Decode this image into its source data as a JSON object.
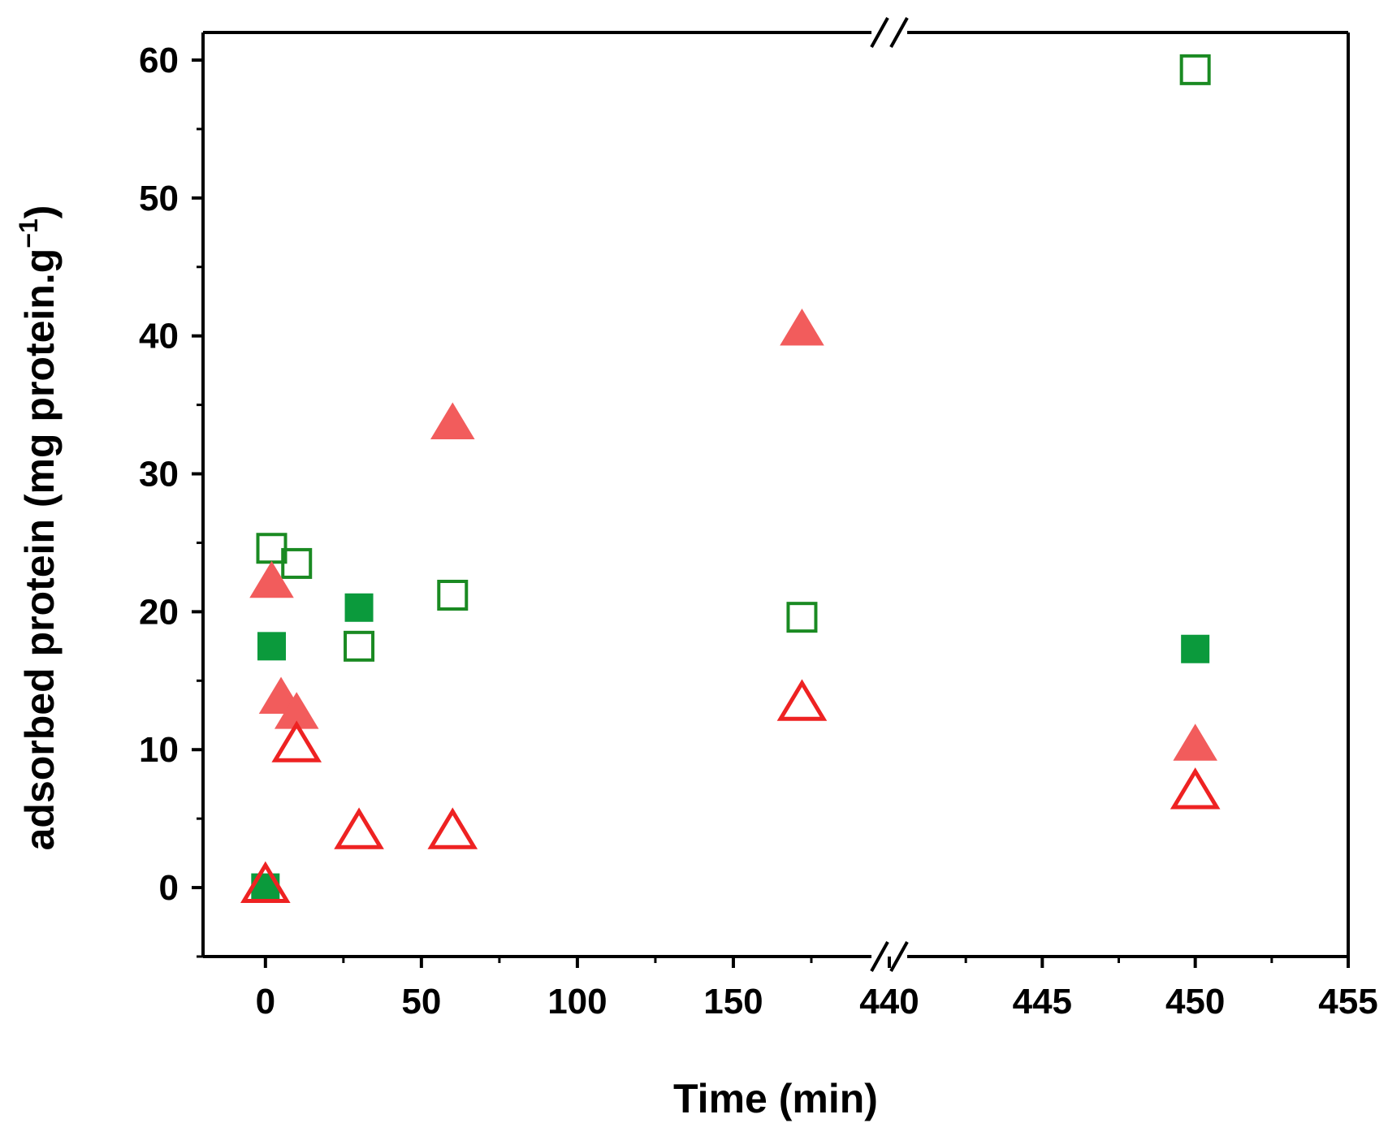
{
  "chart_data": {
    "type": "scatter",
    "title": "",
    "xlabel": "Time (min)",
    "ylabel_main": "adsorbed protein (mg protein.g",
    "ylabel_sup": "−1",
    "ylabel_close": ")",
    "x_axis_break": {
      "segments": [
        {
          "range": [
            -20,
            200
          ],
          "ticks": [
            0,
            50,
            100,
            150
          ]
        },
        {
          "range": [
            440,
            455
          ],
          "ticks": [
            440,
            445,
            450,
            455
          ]
        }
      ]
    },
    "ylim": [
      -5,
      62
    ],
    "yticks": [
      0,
      10,
      20,
      30,
      40,
      50,
      60
    ],
    "grid": false,
    "series": [
      {
        "marker": "square",
        "filled": true,
        "color": "#0b9a3c",
        "points": [
          [
            0,
            0
          ],
          [
            2,
            17.5
          ],
          [
            30,
            20.3
          ],
          [
            450,
            17.3
          ]
        ]
      },
      {
        "marker": "square",
        "filled": false,
        "color": "#1a8a22",
        "points": [
          [
            2,
            24.6
          ],
          [
            10,
            23.5
          ],
          [
            30,
            17.5
          ],
          [
            60,
            21.2
          ],
          [
            172,
            19.6
          ],
          [
            450,
            59.3
          ]
        ]
      },
      {
        "marker": "triangle",
        "filled": true,
        "color": "#f25c5c",
        "points": [
          [
            2,
            22.2
          ],
          [
            5,
            13.8
          ],
          [
            10,
            12.7
          ],
          [
            60,
            33.7
          ],
          [
            172,
            40.5
          ],
          [
            450,
            10.4
          ]
        ]
      },
      {
        "marker": "triangle",
        "filled": false,
        "color": "#ee2222",
        "points": [
          [
            0,
            0.2
          ],
          [
            10,
            10.4
          ],
          [
            30,
            4.1
          ],
          [
            60,
            4.1
          ],
          [
            172,
            13.4
          ],
          [
            450,
            7.0
          ]
        ]
      }
    ]
  }
}
